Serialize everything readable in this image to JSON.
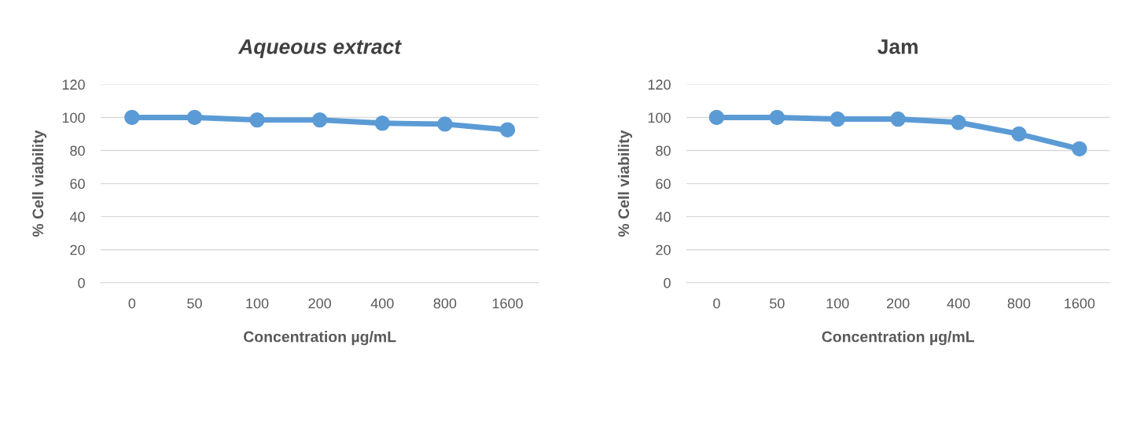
{
  "chart_data": [
    {
      "type": "line",
      "title": "Aqueous extract",
      "xlabel": "Concentration µg/mL",
      "ylabel": "% Cell viability",
      "categories": [
        "0",
        "50",
        "100",
        "200",
        "400",
        "800",
        "1600"
      ],
      "series": [
        {
          "color": "#5b9bd5",
          "values": [
            100,
            100,
            98.5,
            98.5,
            96.5,
            96,
            92.5
          ]
        }
      ],
      "ylim": [
        0,
        120
      ],
      "yticks": [
        0,
        20,
        40,
        60,
        80,
        100,
        120
      ],
      "grid": "y",
      "marker": "circle",
      "line_style": "solid",
      "legend": false
    },
    {
      "type": "line",
      "title": "Jam",
      "xlabel": "Concentration µg/mL",
      "ylabel": "% Cell viability",
      "categories": [
        "0",
        "50",
        "100",
        "200",
        "400",
        "800",
        "1600"
      ],
      "series": [
        {
          "color": "#5b9bd5",
          "values": [
            100,
            100,
            99,
            99,
            97,
            90,
            81
          ]
        }
      ],
      "ylim": [
        0,
        120
      ],
      "yticks": [
        0,
        20,
        40,
        60,
        80,
        100,
        120
      ],
      "grid": "y",
      "marker": "circle",
      "line_style": "solid",
      "legend": false
    }
  ]
}
